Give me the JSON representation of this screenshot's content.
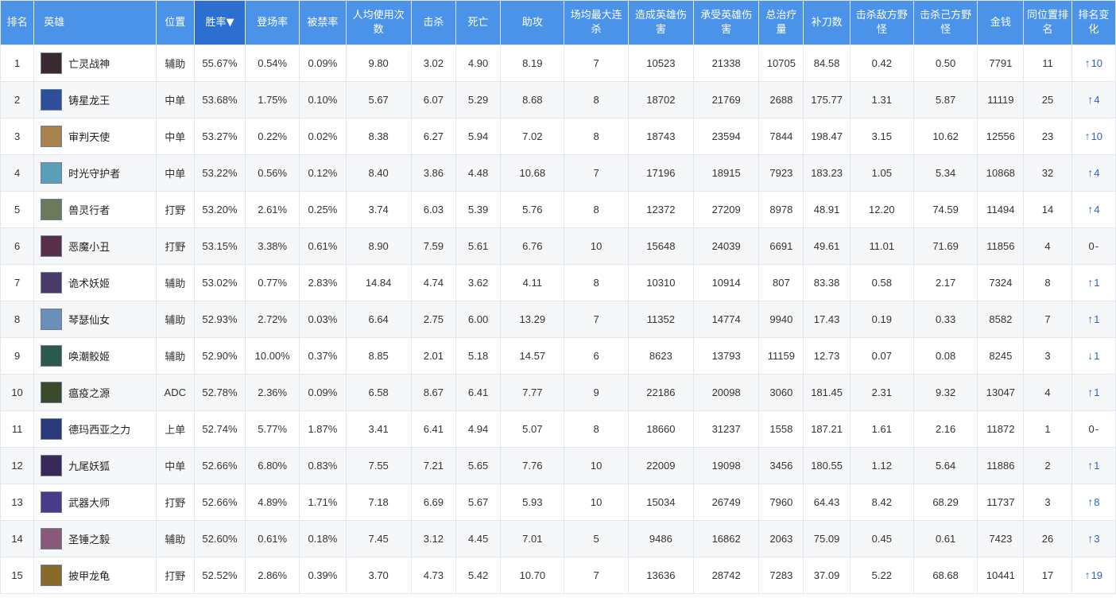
{
  "headers": {
    "rank": "排名",
    "hero": "英雄",
    "position": "位置",
    "winrate": "胜率▼",
    "pickrate": "登场率",
    "banrate": "被禁率",
    "avg_uses": "人均使用次数",
    "kills": "击杀",
    "deaths": "死亡",
    "assists": "助攻",
    "max_streak": "场均最大连杀",
    "damage_dealt": "造成英雄伤害",
    "damage_taken": "承受英雄伤害",
    "heal": "总治疗量",
    "cs": "补刀数",
    "enemy_jungle": "击杀敌方野怪",
    "own_jungle": "击杀己方野怪",
    "gold": "金钱",
    "pos_rank": "同位置排名",
    "rank_change": "排名变化"
  },
  "colors": {
    "header_bg": "#4a93e8",
    "sorted_header_bg": "#2c6fd1",
    "up": "#2b62c8",
    "down": "#1f8f5a"
  },
  "rows": [
    {
      "rank": "1",
      "hero": "亡灵战神",
      "avatar_color": "#3a2a2e",
      "position": "辅助",
      "winrate": "55.67%",
      "pickrate": "0.54%",
      "banrate": "0.09%",
      "avg_uses": "9.80",
      "kills": "3.02",
      "deaths": "4.90",
      "assists": "8.19",
      "max_streak": "7",
      "damage_dealt": "10523",
      "damage_taken": "21338",
      "heal": "10705",
      "cs": "84.58",
      "enemy_jungle": "0.42",
      "own_jungle": "0.50",
      "gold": "7791",
      "pos_rank": "11",
      "change_dir": "up",
      "change": "10"
    },
    {
      "rank": "2",
      "hero": "铸星龙王",
      "avatar_color": "#2e4f9a",
      "position": "中单",
      "winrate": "53.68%",
      "pickrate": "1.75%",
      "banrate": "0.10%",
      "avg_uses": "5.67",
      "kills": "6.07",
      "deaths": "5.29",
      "assists": "8.68",
      "max_streak": "8",
      "damage_dealt": "18702",
      "damage_taken": "21769",
      "heal": "2688",
      "cs": "175.77",
      "enemy_jungle": "1.31",
      "own_jungle": "5.87",
      "gold": "11119",
      "pos_rank": "25",
      "change_dir": "up",
      "change": "4"
    },
    {
      "rank": "3",
      "hero": "审判天使",
      "avatar_color": "#a8824a",
      "position": "中单",
      "winrate": "53.27%",
      "pickrate": "0.22%",
      "banrate": "0.02%",
      "avg_uses": "8.38",
      "kills": "6.27",
      "deaths": "5.94",
      "assists": "7.02",
      "max_streak": "8",
      "damage_dealt": "18743",
      "damage_taken": "23594",
      "heal": "7844",
      "cs": "198.47",
      "enemy_jungle": "3.15",
      "own_jungle": "10.62",
      "gold": "12556",
      "pos_rank": "23",
      "change_dir": "up",
      "change": "10"
    },
    {
      "rank": "4",
      "hero": "时光守护者",
      "avatar_color": "#5a9fb8",
      "position": "中单",
      "winrate": "53.22%",
      "pickrate": "0.56%",
      "banrate": "0.12%",
      "avg_uses": "8.40",
      "kills": "3.86",
      "deaths": "4.48",
      "assists": "10.68",
      "max_streak": "7",
      "damage_dealt": "17196",
      "damage_taken": "18915",
      "heal": "7923",
      "cs": "183.23",
      "enemy_jungle": "1.05",
      "own_jungle": "5.34",
      "gold": "10868",
      "pos_rank": "32",
      "change_dir": "up",
      "change": "4"
    },
    {
      "rank": "5",
      "hero": "兽灵行者",
      "avatar_color": "#6b7a5a",
      "position": "打野",
      "winrate": "53.20%",
      "pickrate": "2.61%",
      "banrate": "0.25%",
      "avg_uses": "3.74",
      "kills": "6.03",
      "deaths": "5.39",
      "assists": "5.76",
      "max_streak": "8",
      "damage_dealt": "12372",
      "damage_taken": "27209",
      "heal": "8978",
      "cs": "48.91",
      "enemy_jungle": "12.20",
      "own_jungle": "74.59",
      "gold": "11494",
      "pos_rank": "14",
      "change_dir": "up",
      "change": "4"
    },
    {
      "rank": "6",
      "hero": "恶魔小丑",
      "avatar_color": "#5a3048",
      "position": "打野",
      "winrate": "53.15%",
      "pickrate": "3.38%",
      "banrate": "0.61%",
      "avg_uses": "8.90",
      "kills": "7.59",
      "deaths": "5.61",
      "assists": "6.76",
      "max_streak": "10",
      "damage_dealt": "15648",
      "damage_taken": "24039",
      "heal": "6691",
      "cs": "49.61",
      "enemy_jungle": "11.01",
      "own_jungle": "71.69",
      "gold": "11856",
      "pos_rank": "4",
      "change_dir": "flat",
      "change": "0"
    },
    {
      "rank": "7",
      "hero": "诡术妖姬",
      "avatar_color": "#4a3a6a",
      "position": "辅助",
      "winrate": "53.02%",
      "pickrate": "0.77%",
      "banrate": "2.83%",
      "avg_uses": "14.84",
      "kills": "4.74",
      "deaths": "3.62",
      "assists": "4.11",
      "max_streak": "8",
      "damage_dealt": "10310",
      "damage_taken": "10914",
      "heal": "807",
      "cs": "83.38",
      "enemy_jungle": "0.58",
      "own_jungle": "2.17",
      "gold": "7324",
      "pos_rank": "8",
      "change_dir": "up",
      "change": "1"
    },
    {
      "rank": "8",
      "hero": "琴瑟仙女",
      "avatar_color": "#6a8fb8",
      "position": "辅助",
      "winrate": "52.93%",
      "pickrate": "2.72%",
      "banrate": "0.03%",
      "avg_uses": "6.64",
      "kills": "2.75",
      "deaths": "6.00",
      "assists": "13.29",
      "max_streak": "7",
      "damage_dealt": "11352",
      "damage_taken": "14774",
      "heal": "9940",
      "cs": "17.43",
      "enemy_jungle": "0.19",
      "own_jungle": "0.33",
      "gold": "8582",
      "pos_rank": "7",
      "change_dir": "up",
      "change": "1"
    },
    {
      "rank": "9",
      "hero": "唤潮鲛姬",
      "avatar_color": "#2a5a4a",
      "position": "辅助",
      "winrate": "52.90%",
      "pickrate": "10.00%",
      "banrate": "0.37%",
      "avg_uses": "8.85",
      "kills": "2.01",
      "deaths": "5.18",
      "assists": "14.57",
      "max_streak": "6",
      "damage_dealt": "8623",
      "damage_taken": "13793",
      "heal": "11159",
      "cs": "12.73",
      "enemy_jungle": "0.07",
      "own_jungle": "0.08",
      "gold": "8245",
      "pos_rank": "3",
      "change_dir": "down",
      "change": "1"
    },
    {
      "rank": "10",
      "hero": "瘟疫之源",
      "avatar_color": "#3a4a2a",
      "position": "ADC",
      "winrate": "52.78%",
      "pickrate": "2.36%",
      "banrate": "0.09%",
      "avg_uses": "6.58",
      "kills": "8.67",
      "deaths": "6.41",
      "assists": "7.77",
      "max_streak": "9",
      "damage_dealt": "22186",
      "damage_taken": "20098",
      "heal": "3060",
      "cs": "181.45",
      "enemy_jungle": "2.31",
      "own_jungle": "9.32",
      "gold": "13047",
      "pos_rank": "4",
      "change_dir": "up",
      "change": "1"
    },
    {
      "rank": "11",
      "hero": "德玛西亚之力",
      "avatar_color": "#2a3a7a",
      "position": "上单",
      "winrate": "52.74%",
      "pickrate": "5.77%",
      "banrate": "1.87%",
      "avg_uses": "3.41",
      "kills": "6.41",
      "deaths": "4.94",
      "assists": "5.07",
      "max_streak": "8",
      "damage_dealt": "18660",
      "damage_taken": "31237",
      "heal": "1558",
      "cs": "187.21",
      "enemy_jungle": "1.61",
      "own_jungle": "2.16",
      "gold": "11872",
      "pos_rank": "1",
      "change_dir": "flat",
      "change": "0"
    },
    {
      "rank": "12",
      "hero": "九尾妖狐",
      "avatar_color": "#3a2a5a",
      "position": "中单",
      "winrate": "52.66%",
      "pickrate": "6.80%",
      "banrate": "0.83%",
      "avg_uses": "7.55",
      "kills": "7.21",
      "deaths": "5.65",
      "assists": "7.76",
      "max_streak": "10",
      "damage_dealt": "22009",
      "damage_taken": "19098",
      "heal": "3456",
      "cs": "180.55",
      "enemy_jungle": "1.12",
      "own_jungle": "5.64",
      "gold": "11886",
      "pos_rank": "2",
      "change_dir": "up",
      "change": "1"
    },
    {
      "rank": "13",
      "hero": "武器大师",
      "avatar_color": "#4a3a8a",
      "position": "打野",
      "winrate": "52.66%",
      "pickrate": "4.89%",
      "banrate": "1.71%",
      "avg_uses": "7.18",
      "kills": "6.69",
      "deaths": "5.67",
      "assists": "5.93",
      "max_streak": "10",
      "damage_dealt": "15034",
      "damage_taken": "26749",
      "heal": "7960",
      "cs": "64.43",
      "enemy_jungle": "8.42",
      "own_jungle": "68.29",
      "gold": "11737",
      "pos_rank": "3",
      "change_dir": "up",
      "change": "8"
    },
    {
      "rank": "14",
      "hero": "圣锤之毅",
      "avatar_color": "#8a5a7a",
      "position": "辅助",
      "winrate": "52.60%",
      "pickrate": "0.61%",
      "banrate": "0.18%",
      "avg_uses": "7.45",
      "kills": "3.12",
      "deaths": "4.45",
      "assists": "7.01",
      "max_streak": "5",
      "damage_dealt": "9486",
      "damage_taken": "16862",
      "heal": "2063",
      "cs": "75.09",
      "enemy_jungle": "0.45",
      "own_jungle": "0.61",
      "gold": "7423",
      "pos_rank": "26",
      "change_dir": "up",
      "change": "3"
    },
    {
      "rank": "15",
      "hero": "披甲龙龟",
      "avatar_color": "#8a6a2a",
      "position": "打野",
      "winrate": "52.52%",
      "pickrate": "2.86%",
      "banrate": "0.39%",
      "avg_uses": "3.70",
      "kills": "4.73",
      "deaths": "5.42",
      "assists": "10.70",
      "max_streak": "7",
      "damage_dealt": "13636",
      "damage_taken": "28742",
      "heal": "7283",
      "cs": "37.09",
      "enemy_jungle": "5.22",
      "own_jungle": "68.68",
      "gold": "10441",
      "pos_rank": "17",
      "change_dir": "up",
      "change": "19"
    }
  ]
}
